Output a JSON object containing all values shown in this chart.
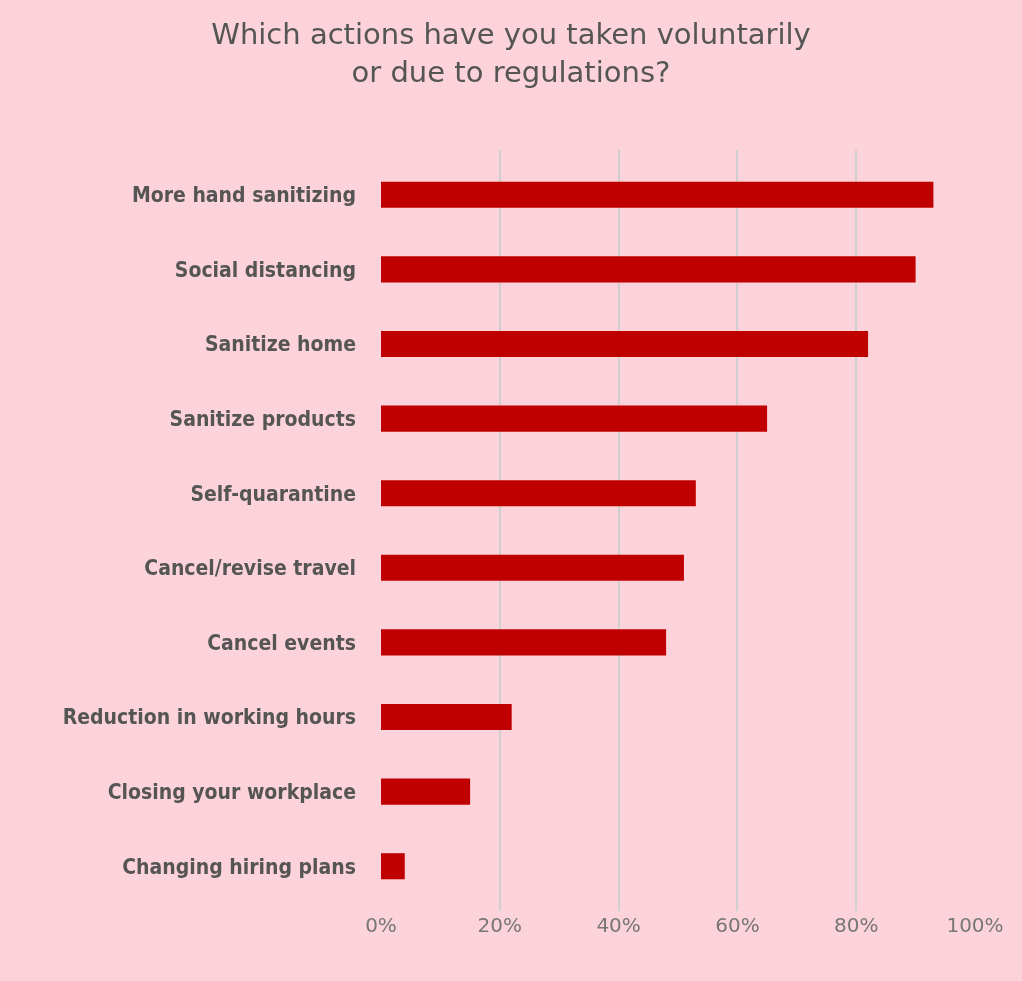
{
  "chart_data": {
    "type": "bar",
    "orientation": "horizontal",
    "title": "Which actions have you taken voluntarily\nor due to regulations?",
    "categories": [
      "More hand sanitizing",
      "Social distancing",
      "Sanitize home",
      "Sanitize products",
      "Self-quarantine",
      "Cancel/revise travel",
      "Cancel events",
      "Reduction in working hours",
      "Closing your workplace",
      "Changing hiring plans"
    ],
    "values": [
      93,
      90,
      82,
      65,
      53,
      51,
      48,
      22,
      15,
      4
    ],
    "color": "#c00000",
    "xlim": [
      0,
      100
    ],
    "xticks": [
      {
        "value": 0,
        "label": "0%"
      },
      {
        "value": 20,
        "label": "20%"
      },
      {
        "value": 40,
        "label": "40%"
      },
      {
        "value": 60,
        "label": "60%"
      },
      {
        "value": 80,
        "label": "80%"
      },
      {
        "value": 100,
        "label": "100%"
      }
    ],
    "grid": "x"
  }
}
